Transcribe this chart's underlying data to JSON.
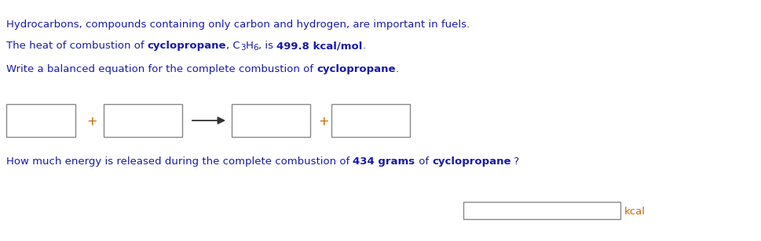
{
  "bg_color": "#ffffff",
  "text_color_blue": "#1a1aaa",
  "text_color_orange": "#cc6600",
  "text_color_black": "#333333",
  "kcal_color": "#cc6600",
  "box_edge_color": "#888888",
  "font_size": 9.5,
  "line1": "Hydrocarbons, compounds containing only carbon and hydrogen, are important in fuels.",
  "line2_parts": [
    [
      "The heat of combustion of ",
      false
    ],
    [
      "cyclopropane",
      true
    ],
    [
      ", C",
      false
    ],
    [
      "3",
      false
    ],
    [
      "H",
      false
    ],
    [
      "6",
      false
    ],
    [
      ", is ",
      false
    ],
    [
      "499.8 kcal/mol",
      true
    ],
    [
      ".",
      false
    ]
  ],
  "line3_parts": [
    [
      "Write a balanced equation for the complete combustion of ",
      false
    ],
    [
      "cyclopropane",
      true
    ],
    [
      ".",
      false
    ]
  ],
  "line4_parts": [
    [
      "How much energy is released during the complete combustion of ",
      false
    ],
    [
      "434 grams",
      true
    ],
    [
      " of ",
      false
    ],
    [
      "cyclopropane",
      true
    ],
    [
      " ?",
      false
    ]
  ],
  "kcal_label": "kcal",
  "fig_width": 9.7,
  "fig_height": 3.08,
  "dpi": 100
}
